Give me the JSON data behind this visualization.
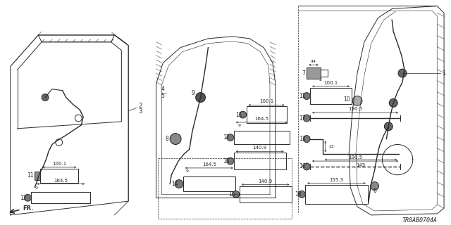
{
  "diagram_id": "TR0AB0704A",
  "bg_color": "#ffffff",
  "line_color": "#2a2a2a",
  "fig_width": 6.4,
  "fig_height": 3.2,
  "dpi": 100
}
